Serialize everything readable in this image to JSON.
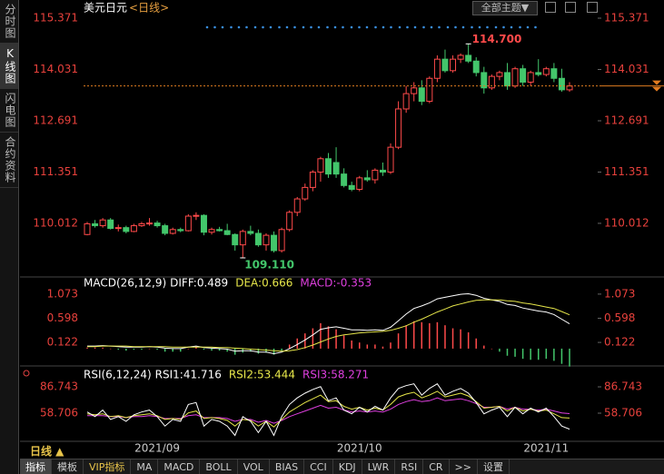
{
  "sidebar": {
    "tabs": [
      "分时图",
      "K线图",
      "闪电图",
      "合约资料"
    ]
  },
  "header": {
    "theme_dropdown": "全部主题▼"
  },
  "period_button": "日线 ▲",
  "toolbar": {
    "items": [
      "指标",
      "模板",
      "VIP指标",
      "MA",
      "MACD",
      "BOLL",
      "VOL",
      "BIAS",
      "CCI",
      "KDJ",
      "LWR",
      "RSI",
      "CR",
      ">>",
      "设置"
    ]
  },
  "chart_data": [
    {
      "type": "candlestick",
      "title": "美元日元",
      "subtitle": "<日线>",
      "categories": [
        null,
        null,
        null,
        null,
        null,
        null,
        null,
        null,
        null,
        "2021/09",
        null,
        null,
        null,
        null,
        null,
        null,
        null,
        null,
        null,
        null,
        null,
        null,
        null,
        null,
        null,
        null,
        null,
        null,
        null,
        null,
        null,
        null,
        null,
        null,
        null,
        "2021/10",
        null,
        null,
        null,
        null,
        null,
        null,
        null,
        null,
        null,
        null,
        null,
        null,
        null,
        null,
        null,
        null,
        null,
        null,
        null,
        null,
        null,
        null,
        null,
        "2021/11",
        null,
        null,
        null
      ],
      "open": [
        109.72,
        110.0,
        109.95,
        110.1,
        109.88,
        109.9,
        109.8,
        109.95,
        110.0,
        110.02,
        109.95,
        109.75,
        109.85,
        109.82,
        110.2,
        110.22,
        109.78,
        109.85,
        109.82,
        109.72,
        109.45,
        109.8,
        109.75,
        109.45,
        109.7,
        109.3,
        109.85,
        110.3,
        110.65,
        110.95,
        111.35,
        111.7,
        111.6,
        111.3,
        111.0,
        110.9,
        111.2,
        111.15,
        111.4,
        111.35,
        112.0,
        113.0,
        113.4,
        113.55,
        113.2,
        113.8,
        114.3,
        114.0,
        114.3,
        114.4,
        114.25,
        113.95,
        113.55,
        113.85,
        113.95,
        113.6,
        114.05,
        113.7,
        113.95,
        113.9,
        114.05,
        113.8,
        113.5
      ],
      "high": [
        110.05,
        110.1,
        110.15,
        110.15,
        109.98,
        109.95,
        110.0,
        110.05,
        110.15,
        110.08,
        110.0,
        109.9,
        109.9,
        110.25,
        110.3,
        110.25,
        109.9,
        109.92,
        110.0,
        109.75,
        109.85,
        109.95,
        109.85,
        109.75,
        109.8,
        109.9,
        110.35,
        110.7,
        111.05,
        111.4,
        111.75,
        111.85,
        112.0,
        111.45,
        111.1,
        111.25,
        111.4,
        111.45,
        111.6,
        112.1,
        113.2,
        113.6,
        113.7,
        113.75,
        113.85,
        114.4,
        114.55,
        114.4,
        114.45,
        114.7,
        114.35,
        114.1,
        113.9,
        114.0,
        114.2,
        114.1,
        114.15,
        114.0,
        114.3,
        114.1,
        114.2,
        114.05,
        113.7
      ],
      "low": [
        109.7,
        109.9,
        109.9,
        109.85,
        109.8,
        109.75,
        109.78,
        109.92,
        109.95,
        109.9,
        109.7,
        109.72,
        109.78,
        109.8,
        110.1,
        109.7,
        109.72,
        109.8,
        109.7,
        109.3,
        109.11,
        109.7,
        109.4,
        109.3,
        109.25,
        109.25,
        109.8,
        110.2,
        110.6,
        110.85,
        111.1,
        111.2,
        111.2,
        110.95,
        110.85,
        110.85,
        111.1,
        111.05,
        111.25,
        111.3,
        111.95,
        112.9,
        113.2,
        113.1,
        113.15,
        113.7,
        113.95,
        113.95,
        114.2,
        114.2,
        113.85,
        113.4,
        113.5,
        113.75,
        113.5,
        113.55,
        113.6,
        113.6,
        113.85,
        113.85,
        113.7,
        113.45,
        113.45
      ],
      "close": [
        110.0,
        109.95,
        110.1,
        109.88,
        109.9,
        109.8,
        109.95,
        110.0,
        110.02,
        109.95,
        109.75,
        109.85,
        109.82,
        110.2,
        110.22,
        109.78,
        109.85,
        109.82,
        109.72,
        109.45,
        109.8,
        109.75,
        109.45,
        109.7,
        109.3,
        109.85,
        110.3,
        110.65,
        110.95,
        111.35,
        111.7,
        111.3,
        111.3,
        111.0,
        110.9,
        111.2,
        111.15,
        111.4,
        111.35,
        112.0,
        113.0,
        113.4,
        113.55,
        113.2,
        113.8,
        114.3,
        114.0,
        114.3,
        114.4,
        114.25,
        113.95,
        113.55,
        113.85,
        113.95,
        113.6,
        114.05,
        113.7,
        113.95,
        113.9,
        114.05,
        113.8,
        113.5,
        113.6
      ],
      "up_color": "#ff4a4a",
      "down_color": "#43c66b",
      "last_price_color": "#e07b20",
      "ylim": [
        108.73,
        115.656
      ],
      "yticks": [
        115.371,
        114.031,
        112.691,
        111.351,
        110.012
      ],
      "annotations": {
        "high": {
          "value": 114.7,
          "label": "114.700"
        },
        "low": {
          "value": 109.11,
          "label": "109.110"
        }
      }
    },
    {
      "type": "macd",
      "title": "MACD(26,12,9)",
      "series": [
        {
          "name": "DIFF",
          "label": "DIFF:0.489",
          "color": "#ffffff",
          "values": [
            0.05,
            0.05,
            0.06,
            0.05,
            0.04,
            0.03,
            0.03,
            0.03,
            0.04,
            0.03,
            0.01,
            0.0,
            0.0,
            0.03,
            0.05,
            0.02,
            0.01,
            0.0,
            -0.01,
            -0.05,
            -0.04,
            -0.04,
            -0.07,
            -0.07,
            -0.1,
            -0.07,
            0.0,
            0.08,
            0.17,
            0.27,
            0.38,
            0.41,
            0.43,
            0.4,
            0.37,
            0.37,
            0.36,
            0.37,
            0.36,
            0.42,
            0.55,
            0.68,
            0.79,
            0.84,
            0.9,
            0.98,
            1.01,
            1.04,
            1.07,
            1.08,
            1.05,
            0.99,
            0.96,
            0.93,
            0.87,
            0.85,
            0.8,
            0.77,
            0.74,
            0.72,
            0.67,
            0.58,
            0.489
          ]
        },
        {
          "name": "DEA",
          "label": "DEA:0.666",
          "color": "#e6e64a",
          "values": [
            0.04,
            0.04,
            0.05,
            0.05,
            0.05,
            0.05,
            0.04,
            0.04,
            0.04,
            0.04,
            0.04,
            0.03,
            0.03,
            0.03,
            0.03,
            0.03,
            0.03,
            0.02,
            0.02,
            0.01,
            0.0,
            -0.01,
            -0.02,
            -0.03,
            -0.04,
            -0.05,
            -0.04,
            -0.02,
            0.02,
            0.07,
            0.13,
            0.19,
            0.24,
            0.27,
            0.29,
            0.31,
            0.32,
            0.33,
            0.34,
            0.36,
            0.4,
            0.45,
            0.52,
            0.58,
            0.65,
            0.72,
            0.78,
            0.84,
            0.88,
            0.92,
            0.95,
            0.96,
            0.96,
            0.96,
            0.94,
            0.93,
            0.9,
            0.88,
            0.85,
            0.82,
            0.79,
            0.73,
            0.666
          ]
        },
        {
          "name": "MACD",
          "label": "MACD:-0.353",
          "color": "#e040e0",
          "values": [
            0.02,
            0.02,
            0.02,
            0,
            -0.02,
            -0.04,
            -0.02,
            -0.02,
            0,
            -0.02,
            -0.06,
            -0.06,
            -0.06,
            0,
            0.04,
            -0.02,
            -0.04,
            -0.04,
            -0.06,
            -0.12,
            -0.08,
            -0.06,
            -0.1,
            -0.08,
            -0.12,
            -0.04,
            0.08,
            0.2,
            0.3,
            0.4,
            0.5,
            0.44,
            0.38,
            0.26,
            0.16,
            0.12,
            0.08,
            0.08,
            0.04,
            0.12,
            0.3,
            0.46,
            0.54,
            0.52,
            0.5,
            0.52,
            0.46,
            0.4,
            0.38,
            0.32,
            0.2,
            0.06,
            0,
            -0.06,
            -0.14,
            -0.16,
            -0.2,
            -0.22,
            -0.22,
            -0.2,
            -0.24,
            -0.3,
            -0.353
          ]
        }
      ],
      "up_color": "#ff4a4a",
      "down_color": "#43c66b",
      "ylim": [
        -0.35,
        1.25
      ],
      "yticks": [
        1.073,
        0.598,
        0.122
      ]
    },
    {
      "type": "rsi",
      "title": "RSI(6,12,24)",
      "series": [
        {
          "name": "RSI1",
          "label": "RSI1:41.716",
          "color": "#ffffff",
          "values": [
            60,
            55,
            62,
            52,
            55,
            50,
            57,
            60,
            62,
            55,
            45,
            52,
            50,
            68,
            70,
            45,
            52,
            50,
            45,
            35,
            55,
            50,
            38,
            50,
            35,
            55,
            68,
            75,
            80,
            84,
            87,
            72,
            75,
            62,
            58,
            65,
            60,
            66,
            62,
            75,
            85,
            88,
            90,
            78,
            85,
            90,
            78,
            82,
            85,
            80,
            70,
            58,
            62,
            65,
            55,
            65,
            58,
            64,
            60,
            64,
            55,
            45,
            41.716
          ]
        },
        {
          "name": "RSI2",
          "label": "RSI2:53.444",
          "color": "#e6e64a",
          "values": [
            58,
            57,
            58,
            55,
            56,
            54,
            56,
            57,
            58,
            56,
            52,
            53,
            52,
            59,
            61,
            53,
            54,
            53,
            51,
            45,
            52,
            51,
            45,
            50,
            44,
            52,
            60,
            65,
            70,
            74,
            78,
            71,
            72,
            66,
            63,
            65,
            62,
            64,
            62,
            68,
            76,
            79,
            81,
            75,
            78,
            82,
            76,
            78,
            80,
            77,
            71,
            64,
            65,
            66,
            61,
            65,
            61,
            63,
            61,
            62,
            58,
            54,
            53.444
          ]
        },
        {
          "name": "RSI3",
          "label": "RSI3:58.271",
          "color": "#e040e0",
          "values": [
            56,
            56,
            56,
            55,
            55,
            54,
            55,
            55,
            56,
            55,
            53,
            53,
            53,
            56,
            57,
            54,
            54,
            54,
            53,
            50,
            52,
            52,
            49,
            51,
            48,
            51,
            55,
            58,
            61,
            64,
            67,
            64,
            65,
            62,
            60,
            61,
            60,
            61,
            60,
            63,
            68,
            71,
            73,
            71,
            72,
            75,
            72,
            73,
            74,
            72,
            69,
            65,
            65,
            66,
            63,
            65,
            63,
            63,
            62,
            63,
            61,
            59,
            58.271
          ]
        }
      ],
      "ylim": [
        29.7,
        94.5
      ],
      "yticks": [
        86.743,
        58.706
      ]
    }
  ]
}
